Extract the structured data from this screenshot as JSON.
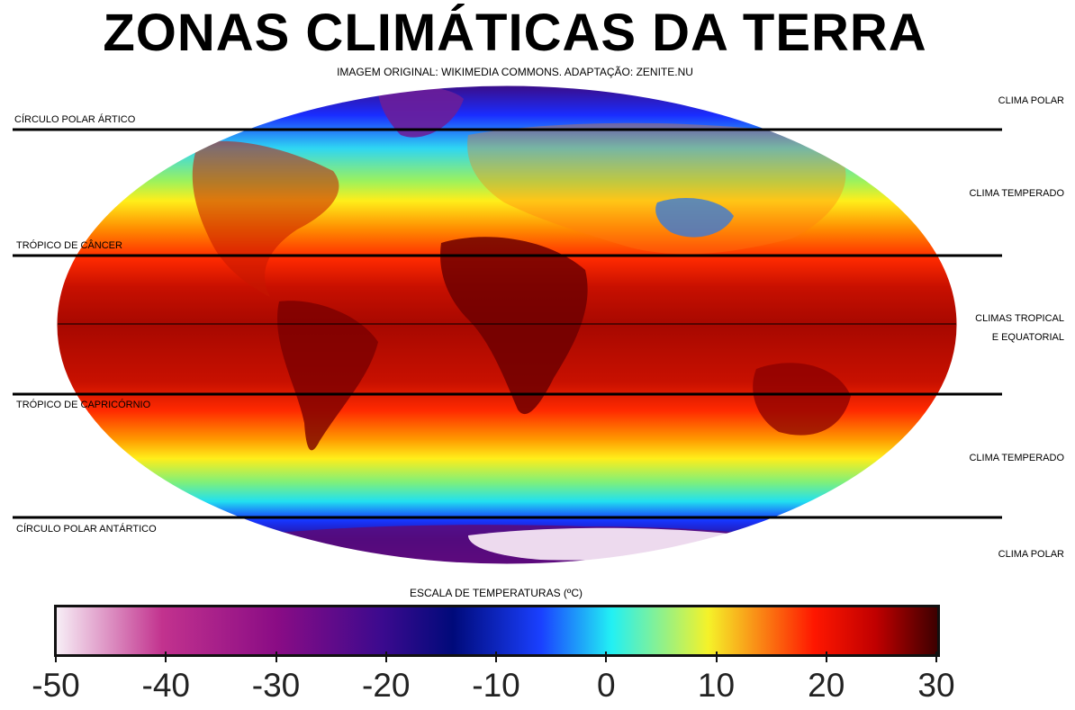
{
  "title": "ZONAS CLIMÁTICAS DA TERRA",
  "credit": "IMAGEM ORIGINAL: WIKIMEDIA COMMONS. ADAPTAÇÃO: ZENITE.NU",
  "lines": {
    "arctic": "CÍRCULO POLAR ÁRTICO",
    "cancer": "TRÓPICO DE CÂNCER",
    "capricorn": "TRÓPICO DE CAPRICÓRNIO",
    "antarctic": "CÍRCULO POLAR ANTÁRTICO"
  },
  "zones": {
    "polar_north": "CLIMA POLAR",
    "temperate_north": "CLIMA TEMPERADO",
    "tropical_line1": "CLIMAS TROPICAL",
    "tropical_line2": "E EQUATORIAL",
    "temperate_south": "CLIMA TEMPERADO",
    "polar_south": "CLIMA POLAR"
  },
  "scale": {
    "title": "ESCALA DE TEMPERATURAS (ºC)",
    "ticks": [
      "-50",
      "-40",
      "-30",
      "-20",
      "-10",
      "0",
      "10",
      "20",
      "30"
    ],
    "colors": [
      "#f7eef6",
      "#c2328e",
      "#8a0c85",
      "#3b0a8e",
      "#000a7a",
      "#1a40ff",
      "#22f0f4",
      "#f5f229",
      "#ff1700",
      "#c00000",
      "#3d0000"
    ]
  },
  "colors": {
    "ocean_warm": "#a30a00",
    "land_hot": "#7a0000",
    "ice": "#f6e6f4"
  }
}
